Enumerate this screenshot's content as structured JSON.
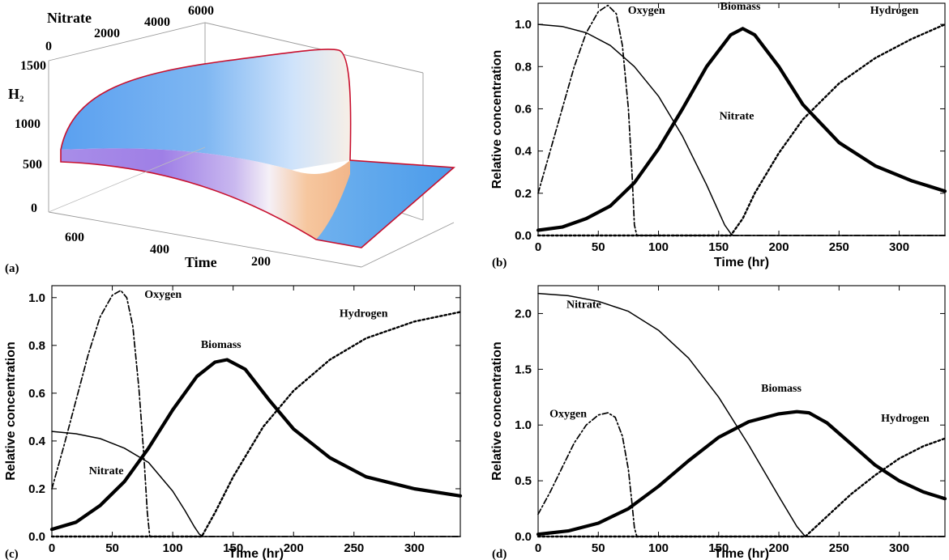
{
  "panel_a": {
    "letter": "(a)",
    "axes": {
      "x_label": "Time",
      "y_label": "Nitrate",
      "z_label": "H₂"
    },
    "x_ticks": [
      "600",
      "400",
      "200"
    ],
    "y_ticks": [
      "0",
      "2000",
      "4000",
      "6000"
    ],
    "z_ticks": [
      "1500",
      "1000",
      "500",
      "0"
    ],
    "surface_colors": {
      "edge": "#c8102e",
      "blue": "#4d9de8",
      "violet": "#9a6ee8",
      "peach": "#f4b98a",
      "white": "#ffffff"
    }
  },
  "chart_data": [
    {
      "panel": "(b)",
      "type": "line",
      "xlabel": "Time (hr)",
      "ylabel": "Relative concentration",
      "xlim": [
        0,
        338
      ],
      "ylim": [
        0,
        1.1
      ],
      "xticks": [
        0,
        50,
        100,
        150,
        200,
        250,
        300
      ],
      "yticks": [
        "0.0",
        "0.2",
        "0.4",
        "0.6",
        "0.8",
        "1.0"
      ],
      "series": [
        {
          "name": "Oxygen",
          "style": "dashdot",
          "x": [
            0,
            10,
            20,
            30,
            40,
            50,
            58,
            65,
            70,
            75,
            78,
            80,
            82,
            338
          ],
          "y": [
            0.2,
            0.4,
            0.6,
            0.8,
            0.96,
            1.06,
            1.09,
            1.05,
            0.9,
            0.6,
            0.3,
            0.05,
            0,
            0
          ]
        },
        {
          "name": "Nitrate",
          "style": "thin",
          "x": [
            0,
            20,
            40,
            60,
            80,
            100,
            120,
            140,
            155,
            160,
            162,
            338
          ],
          "y": [
            1.0,
            0.99,
            0.96,
            0.9,
            0.8,
            0.66,
            0.47,
            0.24,
            0.05,
            0.01,
            0,
            0
          ]
        },
        {
          "name": "Biomass",
          "style": "thick",
          "x": [
            0,
            20,
            40,
            60,
            80,
            100,
            120,
            140,
            160,
            170,
            180,
            200,
            220,
            250,
            280,
            310,
            338
          ],
          "y": [
            0.025,
            0.04,
            0.08,
            0.14,
            0.25,
            0.41,
            0.6,
            0.8,
            0.95,
            0.98,
            0.95,
            0.8,
            0.62,
            0.44,
            0.33,
            0.26,
            0.21
          ]
        },
        {
          "name": "Hydrogen",
          "style": "dotted",
          "x": [
            0,
            160,
            170,
            180,
            200,
            220,
            250,
            280,
            310,
            338
          ],
          "y": [
            0,
            0,
            0.08,
            0.2,
            0.39,
            0.55,
            0.72,
            0.84,
            0.93,
            1.0
          ]
        }
      ],
      "annotations": [
        {
          "text": "Oxygen",
          "x": 90,
          "y": 1.05
        },
        {
          "text": "Biomass",
          "x": 168,
          "y": 1.07
        },
        {
          "text": "Hydrogen",
          "x": 296,
          "y": 1.05
        },
        {
          "text": "Nitrate",
          "x": 165,
          "y": 0.55
        }
      ]
    },
    {
      "panel": "(c)",
      "type": "line",
      "xlabel": "Time (hr)",
      "ylabel": "Relative concentration",
      "xlim": [
        0,
        338
      ],
      "ylim": [
        0,
        1.05
      ],
      "xticks": [
        0,
        50,
        100,
        150,
        200,
        250,
        300
      ],
      "yticks": [
        "0.0",
        "0.2",
        "0.4",
        "0.6",
        "0.8",
        "1.0"
      ],
      "series": [
        {
          "name": "Oxygen",
          "style": "dashdot",
          "x": [
            0,
            10,
            20,
            30,
            40,
            50,
            57,
            62,
            67,
            72,
            76,
            79,
            81,
            338
          ],
          "y": [
            0.2,
            0.38,
            0.57,
            0.76,
            0.92,
            1.01,
            1.03,
            1.0,
            0.88,
            0.62,
            0.35,
            0.1,
            0,
            0
          ]
        },
        {
          "name": "Nitrate",
          "style": "thin",
          "x": [
            0,
            20,
            40,
            60,
            80,
            100,
            110,
            118,
            122,
            125,
            338
          ],
          "y": [
            0.44,
            0.43,
            0.41,
            0.37,
            0.31,
            0.19,
            0.11,
            0.04,
            0.01,
            0,
            0
          ]
        },
        {
          "name": "Biomass",
          "style": "thick",
          "x": [
            0,
            20,
            40,
            60,
            80,
            100,
            120,
            135,
            145,
            160,
            180,
            200,
            230,
            260,
            300,
            338
          ],
          "y": [
            0.03,
            0.06,
            0.13,
            0.23,
            0.37,
            0.53,
            0.67,
            0.73,
            0.74,
            0.7,
            0.57,
            0.45,
            0.33,
            0.25,
            0.2,
            0.17
          ]
        },
        {
          "name": "Hydrogen",
          "style": "dotted",
          "x": [
            0,
            124,
            135,
            150,
            175,
            200,
            230,
            260,
            300,
            338
          ],
          "y": [
            0,
            0,
            0.1,
            0.25,
            0.46,
            0.61,
            0.74,
            0.83,
            0.9,
            0.94
          ]
        }
      ],
      "annotations": [
        {
          "text": "Oxygen",
          "x": 92,
          "y": 1.0
        },
        {
          "text": "Biomass",
          "x": 140,
          "y": 0.79
        },
        {
          "text": "Hydrogen",
          "x": 258,
          "y": 0.92
        },
        {
          "text": "Nitrate",
          "x": 45,
          "y": 0.26
        }
      ]
    },
    {
      "panel": "(d)",
      "type": "line",
      "xlabel": "Time (hr)",
      "ylabel": "Relative concentration",
      "xlim": [
        0,
        338
      ],
      "ylim": [
        0,
        2.25
      ],
      "xticks": [
        0,
        50,
        100,
        150,
        200,
        250,
        300
      ],
      "yticks": [
        "0.0",
        "0.5",
        "1.0",
        "1.5",
        "2.0"
      ],
      "series": [
        {
          "name": "Oxygen",
          "style": "dashdot",
          "x": [
            0,
            10,
            20,
            30,
            40,
            50,
            58,
            64,
            70,
            75,
            78,
            80,
            82,
            338
          ],
          "y": [
            0.2,
            0.4,
            0.62,
            0.84,
            1.0,
            1.09,
            1.11,
            1.07,
            0.9,
            0.6,
            0.3,
            0.08,
            0,
            0
          ]
        },
        {
          "name": "Nitrate",
          "style": "thin",
          "x": [
            0,
            25,
            50,
            75,
            100,
            125,
            150,
            175,
            200,
            215,
            222,
            338
          ],
          "y": [
            2.18,
            2.16,
            2.11,
            2.02,
            1.85,
            1.6,
            1.25,
            0.82,
            0.36,
            0.09,
            0,
            0
          ]
        },
        {
          "name": "Biomass",
          "style": "thick",
          "x": [
            0,
            25,
            50,
            75,
            100,
            125,
            150,
            175,
            200,
            215,
            225,
            240,
            260,
            280,
            300,
            320,
            338
          ],
          "y": [
            0.02,
            0.05,
            0.12,
            0.25,
            0.45,
            0.68,
            0.89,
            1.03,
            1.1,
            1.12,
            1.11,
            1.02,
            0.83,
            0.64,
            0.5,
            0.4,
            0.34
          ]
        },
        {
          "name": "Hydrogen",
          "style": "dotted",
          "x": [
            0,
            222,
            240,
            260,
            280,
            300,
            320,
            338
          ],
          "y": [
            0,
            0,
            0.18,
            0.38,
            0.55,
            0.7,
            0.81,
            0.88
          ]
        }
      ],
      "annotations": [
        {
          "text": "Nitrate",
          "x": 38,
          "y": 2.05
        },
        {
          "text": "Biomass",
          "x": 202,
          "y": 1.3
        },
        {
          "text": "Hydrogen",
          "x": 305,
          "y": 1.03
        },
        {
          "text": "Oxygen",
          "x": 25,
          "y": 1.07
        }
      ]
    }
  ]
}
